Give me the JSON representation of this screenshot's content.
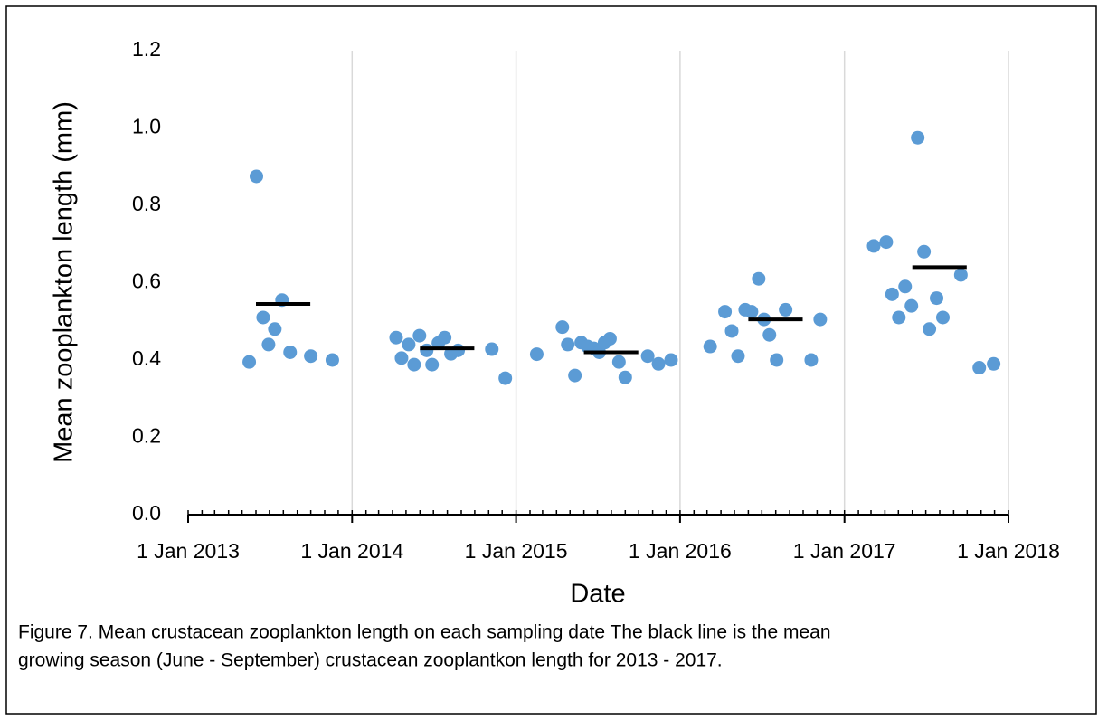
{
  "chart_data": {
    "type": "scatter",
    "caption": [
      "Figure 7. Mean crustacean zooplankton length on each sampling date The black line is the mean",
      "growing season (June - September) crustacean zooplantkon length for 2013 - 2017."
    ],
    "x_label": "Date",
    "y_label": "Mean zooplankton length (mm)",
    "xlim": [
      "2013-01-01",
      "2018-01-01"
    ],
    "xticks": [
      {
        "value": "2013-01-01",
        "label": "1 Jan 2013"
      },
      {
        "value": "2014-01-01",
        "label": "1 Jan 2014"
      },
      {
        "value": "2015-01-01",
        "label": "1 Jan 2015"
      },
      {
        "value": "2016-01-01",
        "label": "1 Jan 2016"
      },
      {
        "value": "2017-01-01",
        "label": "1 Jan 2017"
      },
      {
        "value": "2018-01-01",
        "label": "1 Jan 2018"
      }
    ],
    "ylim": [
      0,
      1.2
    ],
    "yticks": [
      {
        "value": 0,
        "label": "0.0"
      },
      {
        "value": 0.2,
        "label": "0.2"
      },
      {
        "value": 0.4,
        "label": "0.4"
      },
      {
        "value": 0.6,
        "label": "0.6"
      },
      {
        "value": 0.8,
        "label": "0.8"
      },
      {
        "value": 1,
        "label": "1.0"
      },
      {
        "value": 1.2,
        "label": "1.2"
      }
    ],
    "x_grid": true,
    "x_minor_ticks": "monthly",
    "series": [
      {
        "color": "#5b9bd5",
        "x": [
          "2013-05-17",
          "2013-06-02",
          "2013-06-17",
          "2013-06-29",
          "2013-07-13",
          "2013-07-29",
          "2013-08-16",
          "2013-10-01",
          "2013-11-18",
          "2014-04-09",
          "2014-04-21",
          "2014-05-07",
          "2014-05-19",
          "2014-05-31",
          "2014-06-16",
          "2014-06-28",
          "2014-07-12",
          "2014-07-26",
          "2014-08-09",
          "2014-08-25",
          "2014-11-08",
          "2014-12-08",
          "2015-02-16",
          "2015-04-14",
          "2015-04-26",
          "2015-05-12",
          "2015-05-26",
          "2015-06-09",
          "2015-06-23",
          "2015-07-05",
          "2015-07-17",
          "2015-07-29",
          "2015-08-18",
          "2015-09-01",
          "2015-10-21",
          "2015-11-14",
          "2015-12-12",
          "2016-03-08",
          "2016-04-10",
          "2016-04-25",
          "2016-05-09",
          "2016-05-25",
          "2016-06-08",
          "2016-06-24",
          "2016-07-06",
          "2016-07-18",
          "2016-08-03",
          "2016-08-23",
          "2016-10-19",
          "2016-11-08",
          "2017-03-07",
          "2017-04-04",
          "2017-04-17",
          "2017-05-02",
          "2017-05-16",
          "2017-05-30",
          "2017-06-13",
          "2017-06-27",
          "2017-07-09",
          "2017-07-25",
          "2017-08-08",
          "2017-09-17",
          "2017-10-28",
          "2017-11-29"
        ],
        "values": [
          0.395,
          0.875,
          0.51,
          0.44,
          0.48,
          0.555,
          0.42,
          0.41,
          0.4,
          0.458,
          0.405,
          0.44,
          0.388,
          0.463,
          0.425,
          0.388,
          0.444,
          0.458,
          0.416,
          0.425,
          0.428,
          0.353,
          0.415,
          0.485,
          0.44,
          0.36,
          0.445,
          0.435,
          0.43,
          0.42,
          0.445,
          0.455,
          0.395,
          0.355,
          0.41,
          0.39,
          0.4,
          0.435,
          0.525,
          0.475,
          0.41,
          0.53,
          0.525,
          0.61,
          0.505,
          0.465,
          0.4,
          0.53,
          0.4,
          0.505,
          0.695,
          0.705,
          0.57,
          0.51,
          0.59,
          0.54,
          0.975,
          0.68,
          0.48,
          0.56,
          0.51,
          0.62,
          0.38,
          0.39
        ]
      }
    ],
    "means": {
      "color": "#000000",
      "start": [
        "2013-06-01",
        "2014-06-01",
        "2015-06-01",
        "2016-06-01",
        "2017-06-01"
      ],
      "end": [
        "2013-09-30",
        "2014-09-30",
        "2015-09-30",
        "2016-09-30",
        "2017-09-30"
      ],
      "values": [
        0.545,
        0.43,
        0.42,
        0.505,
        0.64
      ]
    }
  }
}
